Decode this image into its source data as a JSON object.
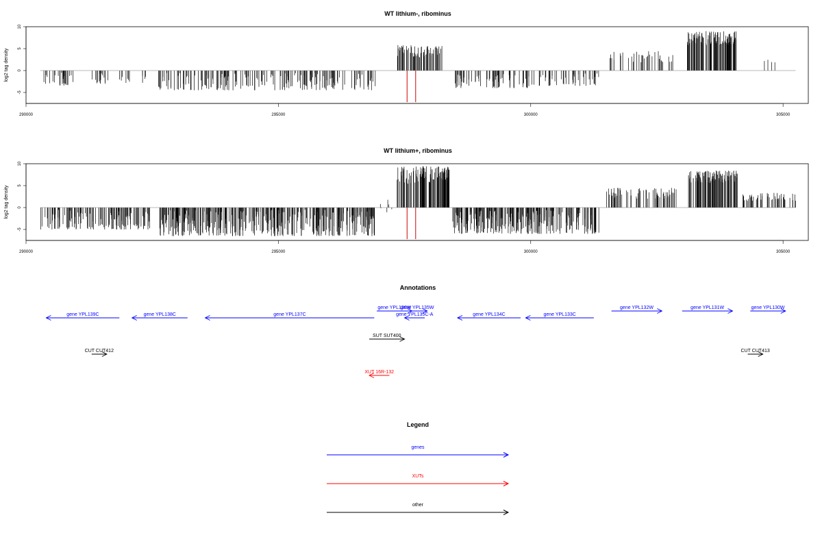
{
  "chart_data": [
    {
      "type": "bar",
      "title": "WT lithium-, ribominus",
      "ylabel": "log2 tag density",
      "xlim": [
        290000,
        305500
      ],
      "ylim": [
        -7.5,
        10
      ],
      "x_ticks": [
        290000,
        295000,
        300000,
        305000
      ],
      "y_ticks": [
        -5,
        0,
        5,
        10
      ],
      "grid": false,
      "signal_regions": [
        {
          "start": 290280,
          "end": 290950,
          "min": -3.5,
          "max": -0.5,
          "density": 0.55
        },
        {
          "start": 291300,
          "end": 291700,
          "min": -3,
          "max": -0.5,
          "density": 0.5
        },
        {
          "start": 291850,
          "end": 292050,
          "min": -3.5,
          "max": -0.5,
          "density": 0.5
        },
        {
          "start": 292300,
          "end": 292400,
          "min": -3,
          "max": -1,
          "density": 0.5
        },
        {
          "start": 292600,
          "end": 296950,
          "min": -4.5,
          "max": -0.5,
          "density": 0.6
        },
        {
          "start": 297350,
          "end": 298250,
          "min": 1.5,
          "max": 5.8,
          "density": 1.0
        },
        {
          "start": 298500,
          "end": 300100,
          "min": -4,
          "max": -0.5,
          "density": 0.6
        },
        {
          "start": 300150,
          "end": 301350,
          "min": -3.5,
          "max": -0.5,
          "density": 0.5
        },
        {
          "start": 301500,
          "end": 302850,
          "min": 0.5,
          "max": 4.5,
          "density": 0.35
        },
        {
          "start": 303100,
          "end": 304100,
          "min": 4,
          "max": 9,
          "density": 1.4
        },
        {
          "start": 304500,
          "end": 305200,
          "min": 1,
          "max": 2.5,
          "density": 0.08
        }
      ],
      "marked_positions": [
        297550,
        297720
      ]
    },
    {
      "type": "bar",
      "title": "WT lithium+, ribominus",
      "ylabel": "log2 tag density",
      "xlim": [
        290000,
        305500
      ],
      "ylim": [
        -7.5,
        10
      ],
      "x_ticks": [
        290000,
        295000,
        300000,
        305000
      ],
      "y_ticks": [
        -5,
        0,
        5,
        10
      ],
      "grid": false,
      "signal_regions": [
        {
          "start": 290280,
          "end": 292450,
          "min": -5,
          "max": -0.5,
          "density": 0.9
        },
        {
          "start": 292650,
          "end": 296950,
          "min": -6.5,
          "max": -0.5,
          "density": 1.2
        },
        {
          "start": 297000,
          "end": 297300,
          "min": -1.5,
          "max": 2.5,
          "density": 0.25
        },
        {
          "start": 297350,
          "end": 298400,
          "min": 3,
          "max": 9.5,
          "density": 1.4
        },
        {
          "start": 298450,
          "end": 301350,
          "min": -6,
          "max": -0.5,
          "density": 1.2
        },
        {
          "start": 301500,
          "end": 302900,
          "min": 0.5,
          "max": 4.5,
          "density": 0.7
        },
        {
          "start": 303100,
          "end": 304100,
          "min": 4,
          "max": 8.5,
          "density": 1.4
        },
        {
          "start": 304150,
          "end": 305250,
          "min": 0.5,
          "max": 3.5,
          "density": 0.6
        }
      ],
      "marked_positions": [
        297550,
        297720
      ]
    }
  ],
  "annotations": {
    "title": "Annotations",
    "features": [
      {
        "label": "gene YPL139C",
        "start": 290400,
        "end": 291850,
        "strand": "-",
        "row": 1,
        "kind": "genes"
      },
      {
        "label": "gene YPL138C",
        "start": 292100,
        "end": 293200,
        "strand": "-",
        "row": 1,
        "kind": "genes"
      },
      {
        "label": "gene YPL137C",
        "start": 293550,
        "end": 296900,
        "strand": "-",
        "row": 1,
        "kind": "genes"
      },
      {
        "label": "gene YPL136W",
        "start": 296950,
        "end": 297650,
        "strand": "+",
        "row": 0,
        "kind": "genes"
      },
      {
        "label": "gene YPL135W",
        "start": 297550,
        "end": 297950,
        "strand": "+",
        "row": 0,
        "kind": "genes"
      },
      {
        "label": "gene YPL135C-A",
        "start": 297500,
        "end": 297900,
        "strand": "-",
        "row": 1,
        "kind": "genes"
      },
      {
        "label": "gene YPL134C",
        "start": 298550,
        "end": 299800,
        "strand": "-",
        "row": 1,
        "kind": "genes"
      },
      {
        "label": "gene YPL133C",
        "start": 299900,
        "end": 301250,
        "strand": "-",
        "row": 1,
        "kind": "genes"
      },
      {
        "label": "gene YPL132W",
        "start": 301600,
        "end": 302600,
        "strand": "+",
        "row": 0,
        "kind": "genes"
      },
      {
        "label": "gene YPL131W",
        "start": 303000,
        "end": 304000,
        "strand": "+",
        "row": 0,
        "kind": "genes"
      },
      {
        "label": "gene YPL130W",
        "start": 304350,
        "end": 305050,
        "strand": "+",
        "row": 0,
        "kind": "genes"
      },
      {
        "label": "SUT SUT400",
        "start": 296800,
        "end": 297500,
        "strand": "+",
        "row": 2,
        "kind": "other"
      },
      {
        "label": "CUT CUT412",
        "start": 291300,
        "end": 291600,
        "strand": "+",
        "row": 3,
        "kind": "other"
      },
      {
        "label": "CUT CUT413",
        "start": 304300,
        "end": 304600,
        "strand": "+",
        "row": 3,
        "kind": "other"
      },
      {
        "label": "XUT 16R-132",
        "start": 296800,
        "end": 297200,
        "strand": "-",
        "row": 4,
        "kind": "xuts"
      }
    ]
  },
  "legend": {
    "title": "Legend",
    "items": [
      {
        "label": "genes",
        "color": "#0000ff"
      },
      {
        "label": "XUTs",
        "color": "#ff0000"
      },
      {
        "label": "other",
        "color": "#000000"
      }
    ]
  },
  "colors": {
    "genes": "#0000ff",
    "xuts": "#ff0000",
    "other": "#000000",
    "marker": "#cc0000"
  }
}
